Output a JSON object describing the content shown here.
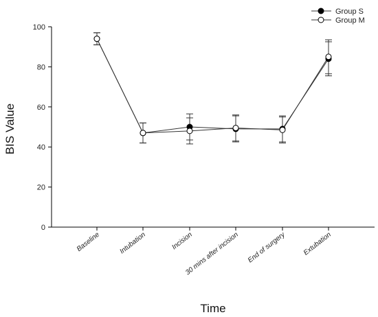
{
  "chart_data": {
    "type": "line",
    "xlabel": "Time",
    "ylabel": "BIS Value",
    "ylim": [
      0,
      100
    ],
    "yticks": [
      0,
      20,
      40,
      60,
      80,
      100
    ],
    "categories": [
      "Baseline",
      "Intubation",
      "Incision",
      "30 mins after incision",
      "End of surgery",
      "Extubation"
    ],
    "series": [
      {
        "name": "Group S",
        "marker": "filled-circle",
        "color": "#000000",
        "values": [
          94,
          47,
          50,
          49,
          49,
          84
        ],
        "error": [
          3,
          5,
          6.5,
          6.5,
          6.5,
          8.5
        ]
      },
      {
        "name": "Group M",
        "marker": "open-circle",
        "color": "#000000",
        "values": [
          94,
          47,
          48,
          49.5,
          48.5,
          85
        ],
        "error": [
          3,
          5,
          6.5,
          6.5,
          6.5,
          8.5
        ]
      }
    ],
    "legend": "top-right",
    "grid": false
  }
}
